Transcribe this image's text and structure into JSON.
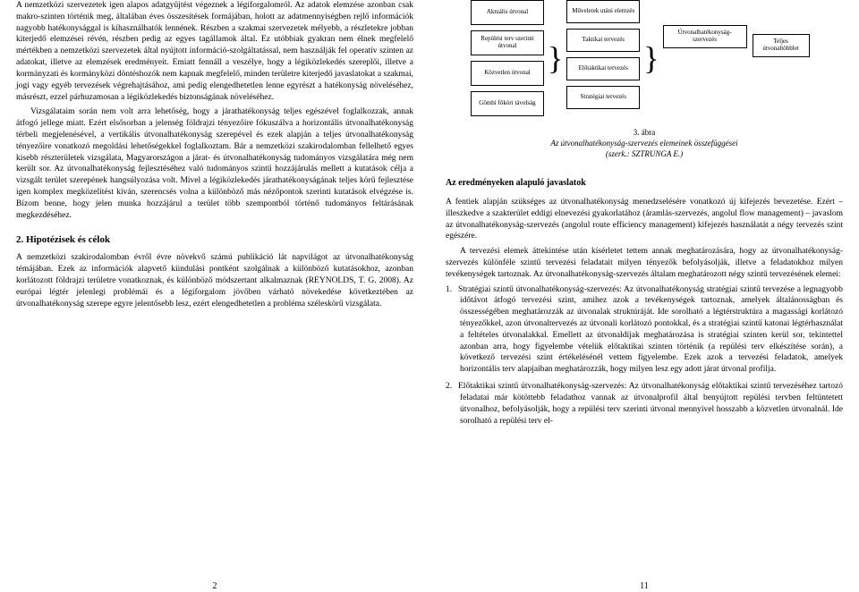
{
  "left": {
    "p1": "A nemzetközi szervezetek igen alapos adatgyűjtést végeznek a légiforgalomról. Az adatok elemzése azonban csak makro-szinten történik meg, általában éves összesítések formájában, holott az adatmennyiségben rejlő információk nagyobb hatékonysággal is kihasználhatók lennének. Részben a szakmai szervezetek mélyebb, a részletekre jobban kiterjedő elemzései révén, részben pedig az egyes tagállamok által. Ez utóbbiak gyakran nem élnek megfelelő mértékben a nemzetközi szervezetek által nyújtott információ-szolgáltatással, nem használják fel operatív szinten az adatokat, illetve az elemzések eredményeit. Emiatt fennáll a veszélye, hogy a légiközlekedés szereplői, illetve a kormányzati és kormányközi döntéshozók nem kapnak megfelelő, minden területre kiterjedő javaslatokat a szakmai, jogi vagy egyéb tervezések végrehajtásához, ami pedig elengedhetetlen lenne egyrészt a hatékonyság növeléséhez, másrészt, ezzel párhuzamosan a légiközlekedés biztonságának növeléséhez.",
    "p2": "Vizsgálataim során nem volt arra lehetőség, hogy a járathatékonyság teljes egészével foglalkozzak, annak átfogó jellege miatt. Ezért elsősorban a jelenség földrajzi tényezőire fókuszálva a horizontális útvonalhatékonyság térbeli megjelenésével, a vertikális útvonalhatékonyság szerepével és ezek alapján a teljes útvonalhatékonyság tényezőire vonatkozó megoldási lehetőségekkel foglalkoztam. Bár a nemzetközi szakirodalomban fellelhető egyes kisebb részterületek vizsgálata, Magyarországon a járat- és útvonalhatékonyság tudományos vizsgálatára még nem került sor. Az útvonalhatékonyság fejlesztéséhez való tudományos szintű hozzájárulás mellett a kutatások célja a vizsgált terület szerepének hangsúlyozása volt. Mivel a légiközlekedés járathatékonyságának teljes körű fejlesztése igen komplex megközelítést kíván, szerencsés volna a különböző más nézőpontok szerinti kutatások elvégzése is. Bízom benne, hogy jelen munka hozzájárul a terület több szempontból történő tudományos feltárásának megkezdéséhez.",
    "section2": "2.  Hipotézisek és célok",
    "p3": "A nemzetközi szakirodalomban évről évre növekvő számú publikáció lát napvilágot az útvonalhatékonyság témájában. Ezek az információk alapvető kiindulási pontként szolgálnak a különböző kutatásokhoz, azonban korlátozott földrajzi területre vonatkoznak, és különböző módszertant alkalmaznak (REYNOLDS, T. G. 2008). Az európai légtér jelenlegi problémái és a légiforgalom jövőben várható növekedése következtében az útvonalhatékonyság szerepe egyre jelentősebb lesz, ezért elengedhetetlen a probléma széleskörű vizsgálata.",
    "pagenum": "2"
  },
  "right": {
    "diagram": {
      "col1": [
        "Aktuális útvonal",
        "Repülési terv szerinti útvonal",
        "Közvetlen útvonal",
        "Gömbi főköri távolság"
      ],
      "col2": [
        "Műveletek utáni elemzés",
        "Taktikai tervezés",
        "Előtaktikai tervezés",
        "Stratégiai tervezés"
      ],
      "col3": "Útvonalhatékonyság-szervezés",
      "col4": "Teljes útvonaltöbblet"
    },
    "figcap_num": "3. ábra",
    "figcap_title": "Az útvonalhatékonyság-szervezés elemeinek összefüggései",
    "figcap_author": "(szerk.: SZTRUNGA E.)",
    "subsection": "Az eredményeken alapuló javaslatok",
    "p1": "A fentiek alapján szükséges az útvonalhatékonyság menedzselésére vonatkozó új kifejezés bevezetése. Ezért – illeszkedve a szakterület eddigi elnevezési gyakorlatához (áramlás-szervezés, angolul flow management) – javaslom az útvonalhatékonyság-szervezés (angolul route efficiency management) kifejezés használatát a négy tervezés szint egészére.",
    "p2": "A tervezési elemek áttekintése után kísérletet tettem annak meghatározására, hogy az útvonalhatékonyság-szervezés különféle szintű tervezési feladatait milyen tényezők befolyásolják, illetve a feladatokhoz milyen tevékenységek tartoznak. Az útvonalhatékonyság-szervezés általam meghatározott négy szintű tervezésének elemei:",
    "item1": "Stratégiai szintű útvonalhatékonyság-szervezés: Az útvonalhatékonyság stratégiai szintű tervezése a legnagyobb időtávot átfogó tervezési szint, amihez azok a tevékenységek tartoznak, amelyek általánosságban és összességében meghatározzák az útvonalak struktúráját. Ide sorolható a légtérstruktúra a magassági korlátozó tényezőkkel, azon útvonaltervezés az útvonali korlátozó pontokkal, és a stratégiai szintű katonai légtérhasználat a feltételes útvonalakkal. Emellett az útvonaldíjak meghatározása is stratégiai szinten kerül sor, tekintettel azonban arra, hogy figyelembe vételük előtaktikai szinten történik (a repülési terv elkészítése során), a következő tervezési szint értékelésénél vettem figyelembe. Ezek azok a tervezési feladatok, amelyek horizontális terv alapjaiban meghatározzák, hogy milyen lesz egy adott járat útvonal profilja.",
    "item2": "Előtaktikai szintű útvonalhatékonyság-szervezés: Az útvonalhatékonyság előtaktikai szintű tervezéséhez tartozó feladatai már kötöttebb feladathoz vannak az útvonalprofil által benyújtott repülési tervben feltüntetett útvonalhoz, befolyásolják, hogy a repülési terv szerinti útvonal mennyivel hosszabb a közvetlen útvonalnál. Ide sorolható a repülési terv el-",
    "pagenum": "11"
  }
}
